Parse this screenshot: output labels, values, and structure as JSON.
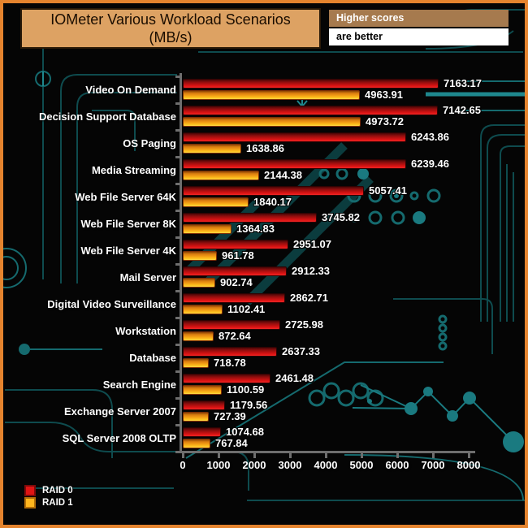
{
  "header": {
    "title_line1": "IOMeter Various Workload Scenarios",
    "title_line2": "(MB/s)",
    "badge_top": "Higher scores",
    "badge_bottom": "are better"
  },
  "chart_data": {
    "type": "bar",
    "orientation": "horizontal",
    "title": "IOMeter Various Workload Scenarios (MB/s)",
    "xlabel": "",
    "ylabel": "",
    "xlim": [
      0,
      8000
    ],
    "x_ticks": [
      0,
      1000,
      2000,
      3000,
      4000,
      5000,
      6000,
      7000,
      8000
    ],
    "grid": false,
    "legend_position": "bottom-left",
    "categories": [
      "Video On Demand",
      "Decision Support Database",
      "OS Paging",
      "Media Streaming",
      "Web File Server 64K",
      "Web File Server 8K",
      "Web File Server 4K",
      "Mail Server",
      "Digital Video Surveillance",
      "Workstation",
      "Database",
      "Search Engine",
      "Exchange Server 2007",
      "SQL Server 2008 OLTP"
    ],
    "series": [
      {
        "name": "RAID 0",
        "color": "#d91111",
        "values": [
          7163.17,
          7142.65,
          6243.86,
          6239.46,
          5057.41,
          3745.82,
          2951.07,
          2912.33,
          2862.71,
          2725.98,
          2637.33,
          2461.48,
          1179.56,
          1074.68
        ]
      },
      {
        "name": "RAID 1",
        "color": "#f7a419",
        "values": [
          4963.91,
          4973.72,
          1638.86,
          2144.38,
          1840.17,
          1364.83,
          961.78,
          902.74,
          1102.41,
          872.64,
          718.78,
          1100.59,
          727.39,
          767.84
        ]
      }
    ]
  },
  "legend": {
    "items": [
      {
        "label": "RAID 0",
        "color": "#e01414"
      },
      {
        "label": "RAID 1",
        "color": "#ffb61e"
      }
    ]
  },
  "colors": {
    "outer_border": "#e5842e",
    "background": "#050505",
    "circuit_trace": "#136064",
    "title_box": "#dda263",
    "badge_brown": "#a67a4e",
    "badge_white": "#ffffff",
    "axis": "#6e6e6e"
  }
}
